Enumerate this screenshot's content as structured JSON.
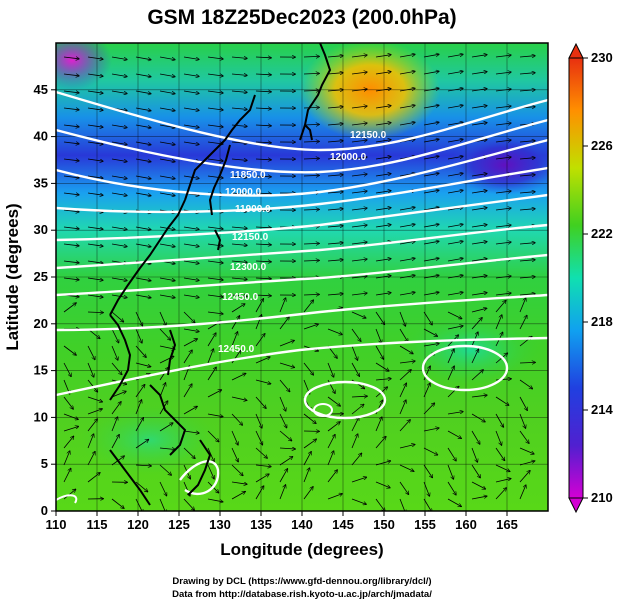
{
  "title": "GSM 18Z25Dec2023 (200.0hPa)",
  "x_axis": {
    "label": "Longitude (degrees)",
    "min": 110,
    "max": 170,
    "ticks": [
      "110",
      "115",
      "120",
      "125",
      "130",
      "135",
      "140",
      "145",
      "150",
      "155",
      "160",
      "165"
    ]
  },
  "y_axis": {
    "label": "Latitude  (degrees)",
    "min": 0,
    "max": 50,
    "ticks": [
      "0",
      "5",
      "10",
      "15",
      "20",
      "25",
      "30",
      "35",
      "40",
      "45"
    ]
  },
  "colorbar": {
    "min": 210,
    "max": 230,
    "labels": [
      "230",
      "226",
      "222",
      "218",
      "214",
      "210"
    ],
    "colors": [
      "#d400d4",
      "#3c1fd0",
      "#00a0ff",
      "#00e0c0",
      "#30d030",
      "#90e000",
      "#f0e000",
      "#ff9000",
      "#e83000"
    ]
  },
  "contour_labels": [
    "12150.0",
    "12000.0",
    "11850.0",
    "11900.0",
    "12000.0",
    "12150.0",
    "12300.0",
    "12450.0",
    "12450.0"
  ],
  "credits": [
    "Drawing by DCL (https://www.gfd-dennou.org/library/dcl/)",
    "Data from http://database.rish.kyoto-u.ac.jp/arch/jmadata/"
  ]
}
